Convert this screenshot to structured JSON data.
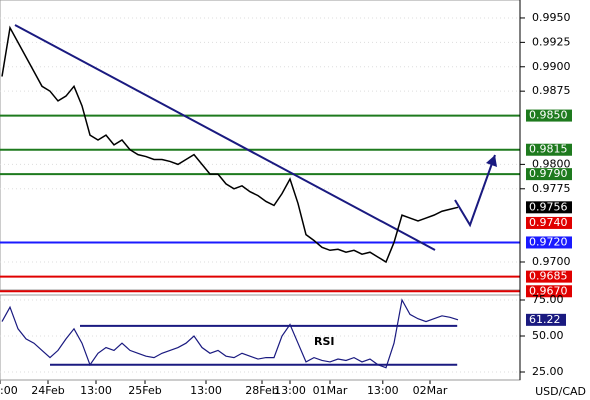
{
  "chart_data": [
    {
      "type": "line",
      "title": "USD/CAD",
      "color": "#000000",
      "values": [
        0.989,
        0.994,
        0.9925,
        0.991,
        0.9895,
        0.988,
        0.9875,
        0.9865,
        0.987,
        0.988,
        0.986,
        0.983,
        0.9825,
        0.983,
        0.982,
        0.9825,
        0.9815,
        0.981,
        0.9808,
        0.9805,
        0.9805,
        0.9803,
        0.98,
        0.9805,
        0.981,
        0.98,
        0.979,
        0.979,
        0.978,
        0.9775,
        0.9778,
        0.9772,
        0.9768,
        0.9762,
        0.9758,
        0.977,
        0.9785,
        0.976,
        0.9728,
        0.9722,
        0.9715,
        0.9712,
        0.9713,
        0.971,
        0.9712,
        0.9708,
        0.971,
        0.9705,
        0.97,
        0.972,
        0.9748,
        0.9745,
        0.9742,
        0.9745,
        0.9748,
        0.9752,
        0.9754,
        0.9756
      ],
      "xlim": [
        -0.25,
        64.75
      ],
      "ylim": [
        0.96713,
        0.99684
      ],
      "xticks": [
        {
          "value": -0.25,
          "label": ":00"
        },
        {
          "value": 5.75,
          "label": "24Feb"
        },
        {
          "value": 11.75,
          "label": "13:00"
        },
        {
          "value": 17.875,
          "label": "25Feb"
        },
        {
          "value": 25.5,
          "label": "13:00"
        },
        {
          "value": 32.5,
          "label": "28Feb"
        },
        {
          "value": 36,
          "label": "13:00"
        },
        {
          "value": 41,
          "label": "01Mar"
        },
        {
          "value": 47.6,
          "label": "13:00"
        },
        {
          "value": 53.5,
          "label": "02Mar"
        }
      ],
      "yticks": [
        {
          "value": 0.995,
          "label": "0.9950"
        },
        {
          "value": 0.9925,
          "label": "0.9925"
        },
        {
          "value": 0.99,
          "label": "0.9900"
        },
        {
          "value": 0.9875,
          "label": "0.9875"
        },
        {
          "value": 0.98,
          "label": "0.9800"
        },
        {
          "value": 0.9775,
          "label": "0.9775"
        },
        {
          "value": 0.97,
          "label": "0.9700"
        }
      ],
      "levels": [
        {
          "value": 0.985,
          "label": "0.9850",
          "color": "#1e7a1e"
        },
        {
          "value": 0.9815,
          "label": "0.9815",
          "color": "#1e7a1e"
        },
        {
          "value": 0.979,
          "label": "0.9790",
          "color": "#1e7a1e"
        },
        {
          "value": 0.972,
          "label": "0.9720",
          "color": "#1a1aff"
        },
        {
          "value": 0.9685,
          "label": "0.9685",
          "color": "#e00000"
        },
        {
          "value": 0.967,
          "label": "0.9670",
          "color": "#e00000"
        }
      ],
      "price_labels": [
        {
          "value": 0.9756,
          "label": "0.9756",
          "color": "#000000"
        },
        {
          "value": 0.974,
          "label": "0.9740",
          "color": "#e00000"
        }
      ],
      "trendline": {
        "x": [
          1.625,
          54.125
        ],
        "y": [
          0.99428,
          0.97123
        ],
        "color": "#1a1a80"
      },
      "arrow": {
        "x": [
          56.625,
          58.5,
          61.625
        ],
        "y": [
          0.97635,
          0.97379,
          0.98096
        ],
        "color": "#1a1a80"
      }
    },
    {
      "type": "line",
      "label": "RSI",
      "color": "#1a1a80",
      "values": [
        60,
        70,
        55,
        48,
        45,
        40,
        35,
        40,
        48,
        55,
        45,
        30,
        38,
        42,
        40,
        45,
        40,
        38,
        36,
        35,
        38,
        40,
        42,
        45,
        50,
        42,
        38,
        40,
        36,
        35,
        38,
        36,
        34,
        35,
        35,
        50,
        58,
        45,
        32,
        35,
        33,
        32,
        34,
        33,
        35,
        32,
        34,
        30,
        28,
        45,
        75,
        65,
        62,
        60,
        62,
        64,
        63,
        61.22
      ],
      "value_labels": {
        "last": "61.22"
      },
      "xlim": [
        -0.25,
        64.75
      ],
      "ylim": [
        19.44,
        78.47
      ],
      "yticks": [
        {
          "value": 75,
          "label": "75.00"
        },
        {
          "value": 50,
          "label": "50.00"
        },
        {
          "value": 25,
          "label": "25.00"
        }
      ],
      "rsi_levels": [
        57,
        30
      ]
    }
  ]
}
